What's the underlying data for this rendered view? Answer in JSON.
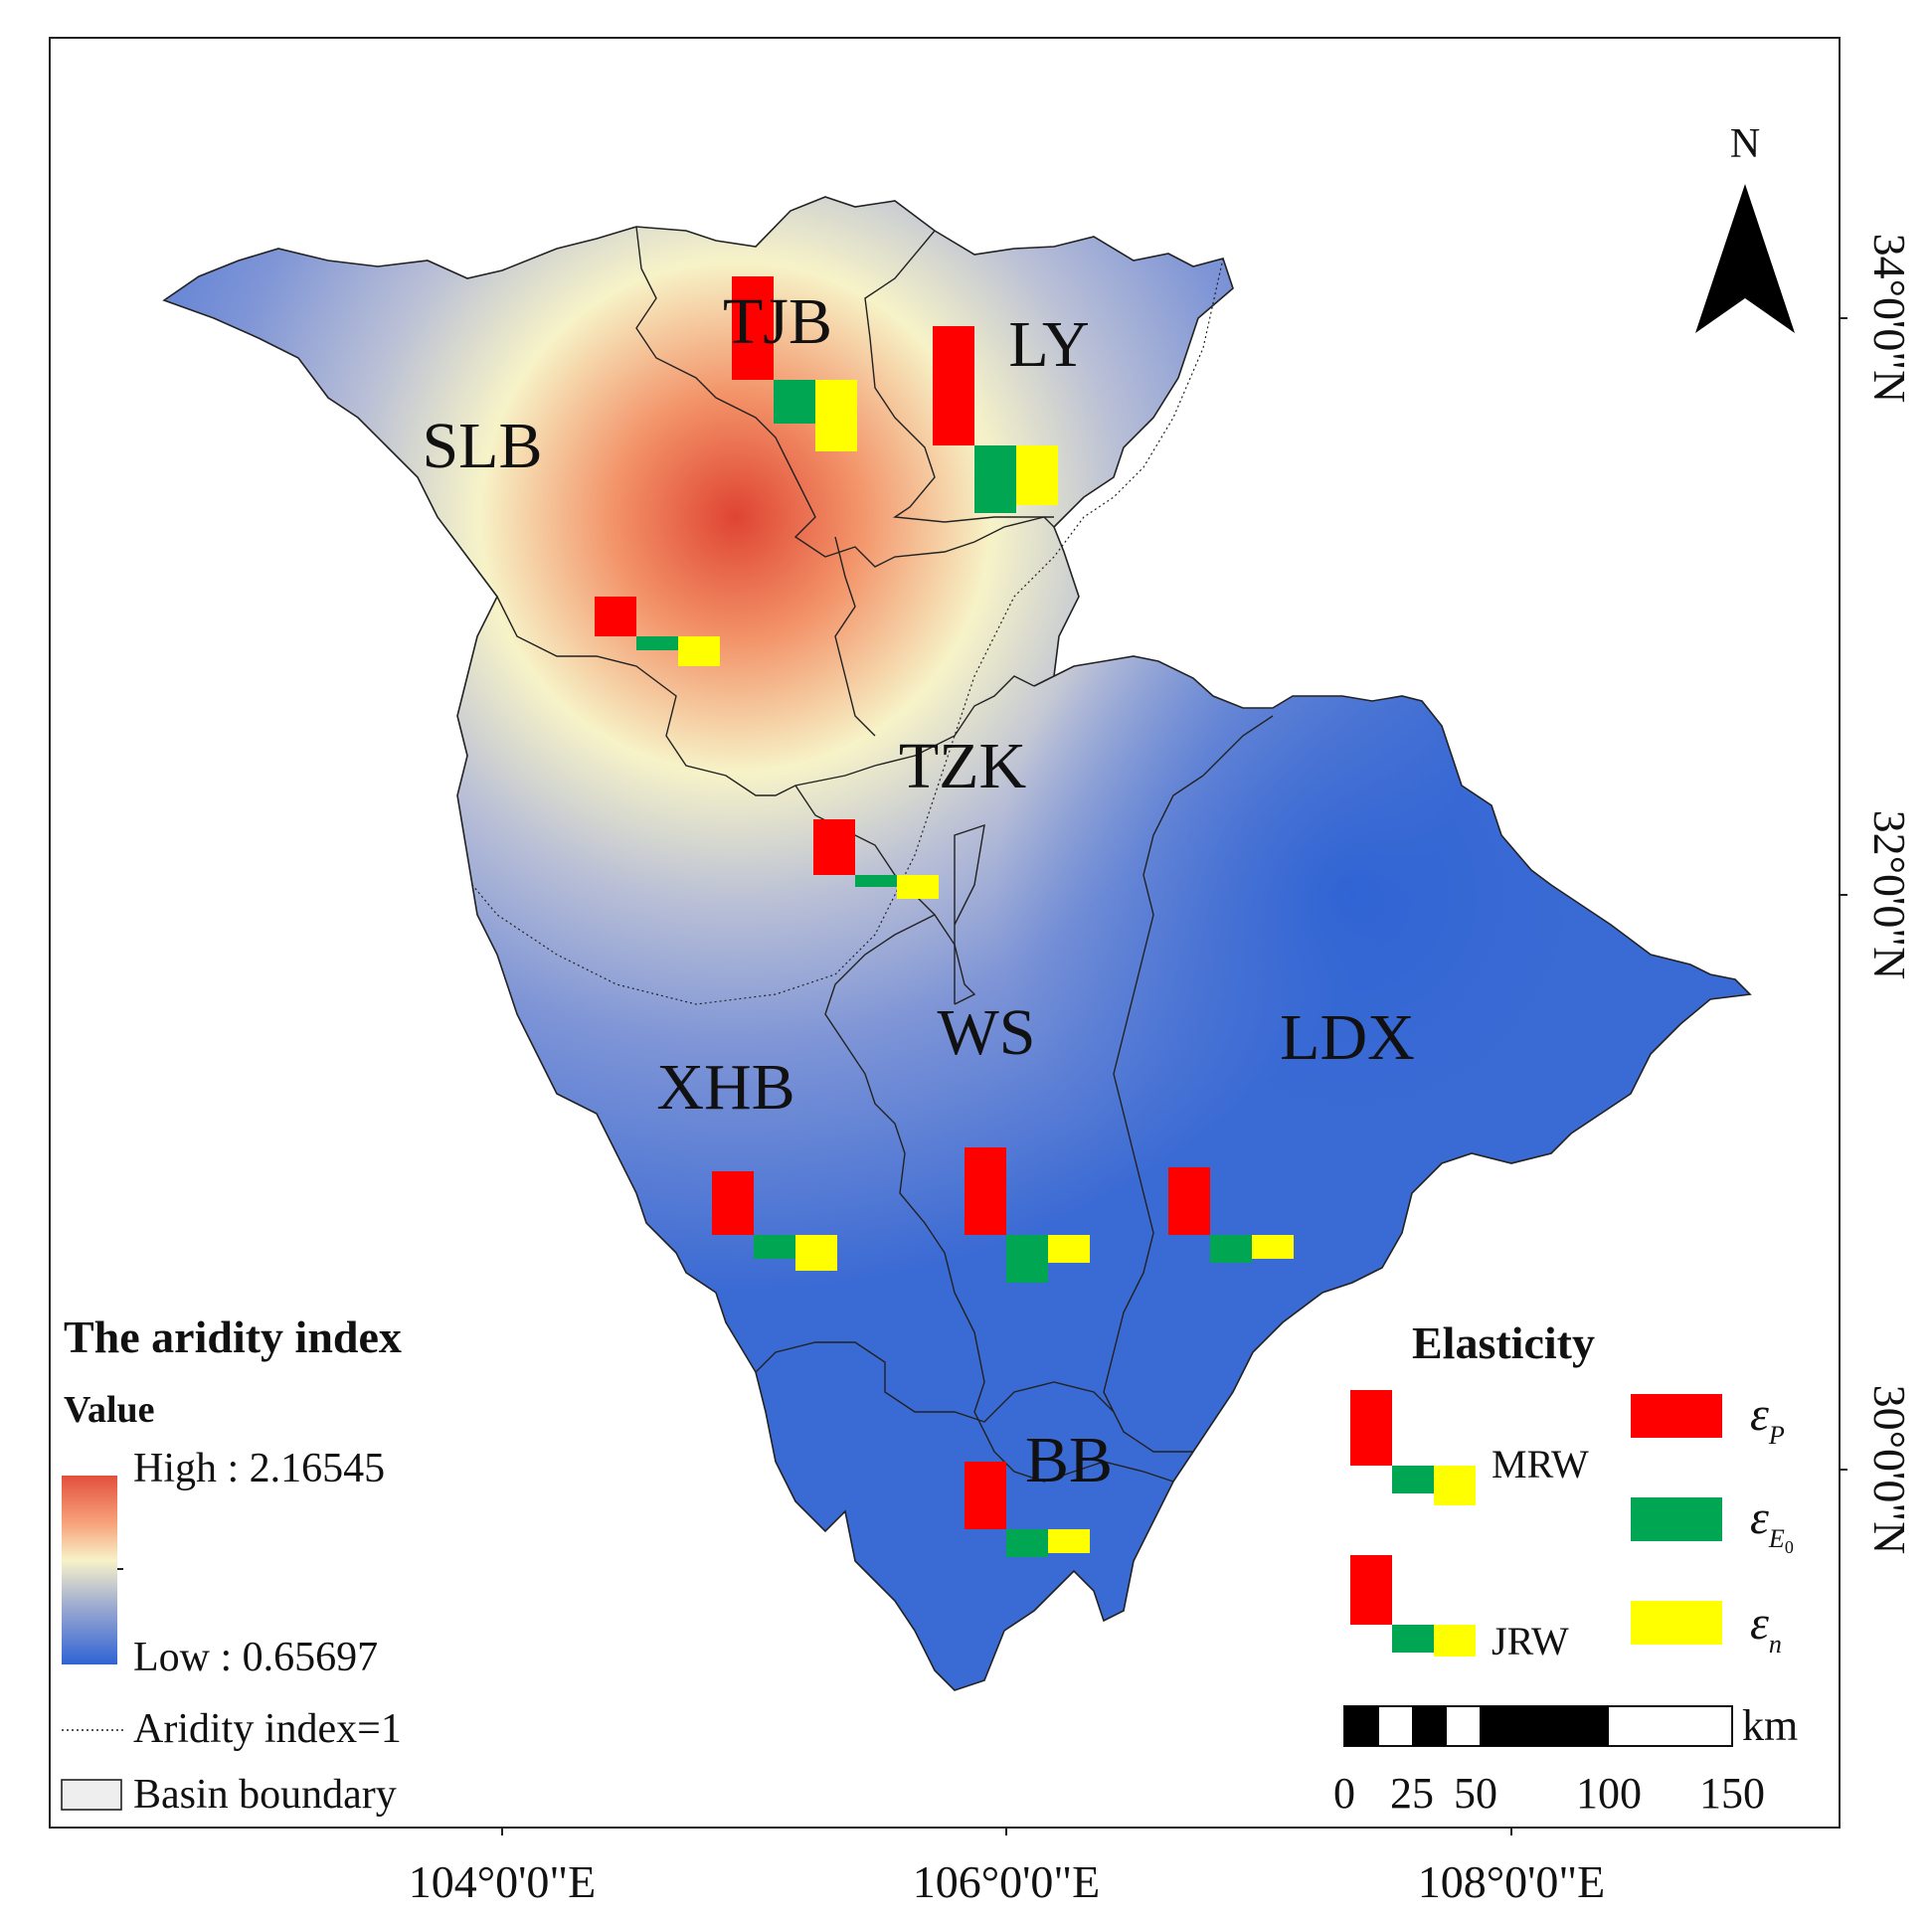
{
  "map": {
    "regions": [
      {
        "id": "SLB",
        "label": "SLB",
        "bars": {
          "ep": 1.0,
          "ee0": 0.35,
          "en": 0.75
        }
      },
      {
        "id": "TJB",
        "label": "TJB",
        "bars": {
          "ep": 2.6,
          "ee0": 1.1,
          "en": 1.8
        }
      },
      {
        "id": "LY",
        "label": "LY",
        "bars": {
          "ep": 3.0,
          "ee0": 1.7,
          "en": 1.5
        }
      },
      {
        "id": "TZK",
        "label": "TZK",
        "bars": {
          "ep": 1.4,
          "ee0": 0.3,
          "en": 0.6
        }
      },
      {
        "id": "XHB",
        "label": "XHB",
        "bars": {
          "ep": 1.6,
          "ee0": 0.6,
          "en": 0.9
        }
      },
      {
        "id": "WS",
        "label": "WS",
        "bars": {
          "ep": 2.2,
          "ee0": 1.2,
          "en": 0.7
        }
      },
      {
        "id": "LDX",
        "label": "LDX",
        "bars": {
          "ep": 1.7,
          "ee0": 0.7,
          "en": 0.6
        }
      },
      {
        "id": "BB",
        "label": "BB",
        "bars": {
          "ep": 1.7,
          "ee0": 0.7,
          "en": 0.6
        }
      }
    ],
    "lon_labels": [
      "104°0'0\"E",
      "106°0'0\"E",
      "108°0'0\"E"
    ],
    "lat_labels": [
      "34°0'0\"N",
      "32°0'0\"N",
      "30°0'0\"N"
    ],
    "north_label": "N"
  },
  "aridity_legend": {
    "title": "The aridity index",
    "value_label": "Value",
    "high": "High : 2.16545",
    "low": "Low : 0.65697",
    "line_label": "Aridity index=1",
    "boundary_label": "Basin boundary"
  },
  "elasticity_legend": {
    "title": "Elasticity",
    "mrw_label": "MRW",
    "jrw_label": "JRW",
    "ep_symbol": "ε",
    "ep_sub": "P",
    "ee0_symbol": "ε",
    "ee0_sub": "E",
    "ee0_subsub": "0",
    "en_symbol": "ε",
    "en_sub": "n"
  },
  "scale_bar": {
    "unit": "km",
    "ticks": [
      "0",
      "25",
      "50",
      "100",
      "150"
    ]
  },
  "colors": {
    "ep": "#ff0000",
    "ee0": "#00a651",
    "en": "#ffff00",
    "high": "#e2503c",
    "mid": "#f5f2c8",
    "low": "#3f6ed4"
  }
}
